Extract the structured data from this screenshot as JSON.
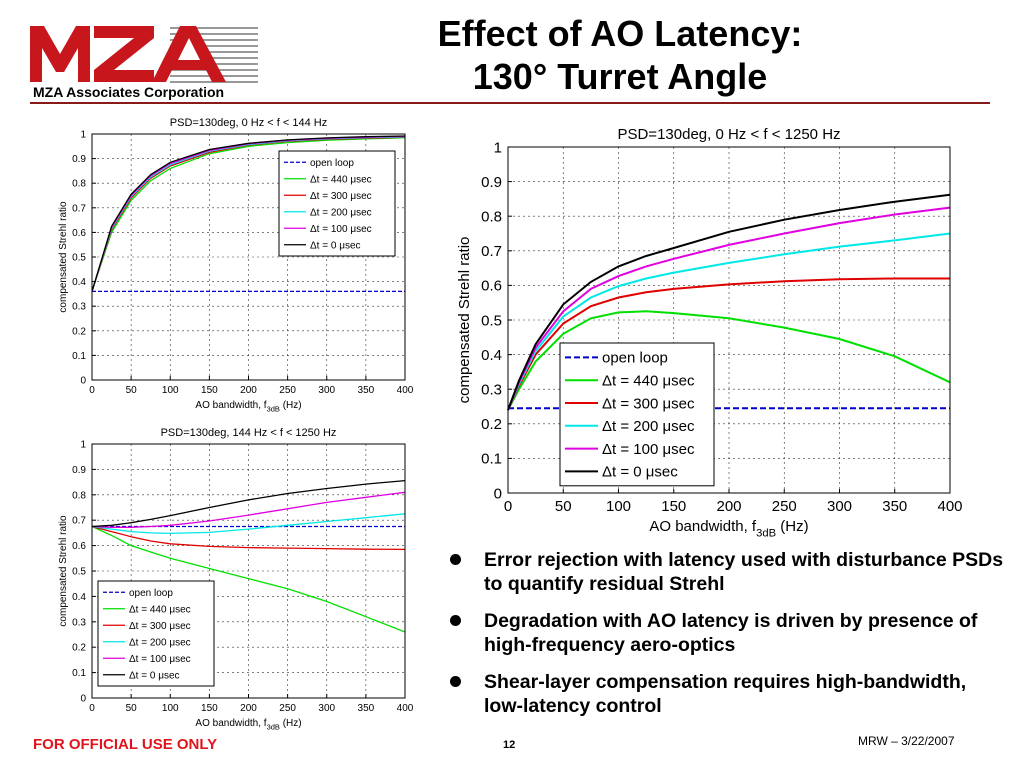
{
  "header": {
    "company": "MZA Associates Corporation",
    "title_line1": "Effect of AO Latency:",
    "title_line2": "130° Turret Angle"
  },
  "colors": {
    "open_loop": "#0000cc",
    "dt440": "#00e000",
    "dt300": "#e00000",
    "dt200": "#00e8e8",
    "dt100": "#e000e0",
    "dt0": "#000000",
    "logo_red": "#c8161d",
    "footer_red": "#e1141e"
  },
  "bullets": [
    "Error rejection with latency used with disturbance PSDs to quantify residual Strehl",
    "Degradation with AO latency is driven by presence of high-frequency aero-optics",
    "Shear-layer compensation requires high-bandwidth, low-latency control"
  ],
  "footer": {
    "classification": "FOR OFFICIAL USE ONLY",
    "page": "12",
    "author_date": "MRW – 3/22/2007"
  },
  "chart_data": [
    {
      "type": "line",
      "title": "PSD=130deg, 0 Hz < f < 144 Hz",
      "xlabel": "AO bandwidth, f",
      "xlabel_sub": "3dB",
      "xlabel_unit": " (Hz)",
      "ylabel": "compensated Strehl ratio",
      "xlim": [
        0,
        400
      ],
      "ylim": [
        0,
        1
      ],
      "xticks": [
        0,
        50,
        100,
        150,
        200,
        250,
        300,
        350,
        400
      ],
      "yticks": [
        0,
        0.1,
        0.2,
        0.3,
        0.4,
        0.5,
        0.6,
        0.7,
        0.8,
        0.9,
        1
      ],
      "ytick_labels": [
        "0",
        "0.1",
        "0.2",
        "0.3",
        "0.4",
        "0.5",
        "0.6",
        "0.7",
        "0.8",
        "0.9",
        "1"
      ],
      "grid": true,
      "legend_position": "upper-right",
      "x": [
        0,
        25,
        50,
        75,
        100,
        150,
        200,
        250,
        300,
        350,
        400
      ],
      "series": [
        {
          "name": "open loop",
          "key": "open_loop",
          "dashed": true,
          "values": [
            0.36,
            0.36,
            0.36,
            0.36,
            0.36,
            0.36,
            0.36,
            0.36,
            0.36,
            0.36,
            0.36
          ]
        },
        {
          "name": "Δt = 440 μsec",
          "key": "dt440",
          "values": [
            0.36,
            0.6,
            0.73,
            0.81,
            0.86,
            0.92,
            0.95,
            0.965,
            0.975,
            0.98,
            0.985
          ]
        },
        {
          "name": "Δt = 300 μsec",
          "key": "dt300",
          "values": [
            0.36,
            0.61,
            0.74,
            0.82,
            0.87,
            0.925,
            0.955,
            0.97,
            0.978,
            0.983,
            0.987
          ]
        },
        {
          "name": "Δt = 200 μsec",
          "key": "dt200",
          "values": [
            0.36,
            0.615,
            0.745,
            0.825,
            0.875,
            0.93,
            0.957,
            0.972,
            0.98,
            0.985,
            0.988
          ]
        },
        {
          "name": "Δt = 100 μsec",
          "key": "dt100",
          "values": [
            0.36,
            0.62,
            0.75,
            0.83,
            0.88,
            0.933,
            0.96,
            0.974,
            0.982,
            0.987,
            0.99
          ]
        },
        {
          "name": "Δt = 0 μsec",
          "key": "dt0",
          "values": [
            0.36,
            0.625,
            0.755,
            0.835,
            0.885,
            0.937,
            0.962,
            0.976,
            0.984,
            0.989,
            0.992
          ]
        }
      ]
    },
    {
      "type": "line",
      "title": "PSD=130deg, 144 Hz < f < 1250 Hz",
      "xlabel": "AO bandwidth, f",
      "xlabel_sub": "3dB",
      "xlabel_unit": " (Hz)",
      "ylabel": "compensated Strehl ratio",
      "xlim": [
        0,
        400
      ],
      "ylim": [
        0,
        1
      ],
      "xticks": [
        0,
        50,
        100,
        150,
        200,
        250,
        300,
        350,
        400
      ],
      "yticks": [
        0,
        0.1,
        0.2,
        0.3,
        0.4,
        0.5,
        0.6,
        0.7,
        0.8,
        0.9,
        1
      ],
      "ytick_labels": [
        "0",
        "0.1",
        "0.2",
        "0.3",
        "0.4",
        "0.5",
        "0.6",
        "0.7",
        "0.8",
        "0.9",
        "1"
      ],
      "grid": true,
      "legend_position": "lower-left",
      "x": [
        0,
        25,
        50,
        75,
        100,
        150,
        200,
        250,
        300,
        350,
        400
      ],
      "series": [
        {
          "name": "open loop",
          "key": "open_loop",
          "dashed": true,
          "values": [
            0.675,
            0.675,
            0.675,
            0.675,
            0.675,
            0.675,
            0.675,
            0.675,
            0.675,
            0.675,
            0.675
          ]
        },
        {
          "name": "Δt = 440 μsec",
          "key": "dt440",
          "values": [
            0.675,
            0.64,
            0.6,
            0.575,
            0.55,
            0.51,
            0.47,
            0.43,
            0.38,
            0.32,
            0.26
          ]
        },
        {
          "name": "Δt = 300 μsec",
          "key": "dt300",
          "values": [
            0.675,
            0.655,
            0.635,
            0.618,
            0.607,
            0.597,
            0.592,
            0.59,
            0.588,
            0.586,
            0.585
          ]
        },
        {
          "name": "Δt = 200 μsec",
          "key": "dt200",
          "values": [
            0.675,
            0.665,
            0.655,
            0.65,
            0.648,
            0.652,
            0.665,
            0.68,
            0.695,
            0.71,
            0.725
          ]
        },
        {
          "name": "Δt = 100 μsec",
          "key": "dt100",
          "values": [
            0.675,
            0.672,
            0.672,
            0.675,
            0.68,
            0.697,
            0.72,
            0.745,
            0.77,
            0.79,
            0.81
          ]
        },
        {
          "name": "Δt = 0 μsec",
          "key": "dt0",
          "values": [
            0.675,
            0.68,
            0.69,
            0.703,
            0.718,
            0.75,
            0.78,
            0.805,
            0.825,
            0.842,
            0.856
          ]
        }
      ]
    },
    {
      "type": "line",
      "title": "PSD=130deg, 0 Hz < f < 1250 Hz",
      "xlabel": "AO bandwidth, f",
      "xlabel_sub": "3dB",
      "xlabel_unit": " (Hz)",
      "ylabel": "compensated Strehl ratio",
      "xlim": [
        0,
        400
      ],
      "ylim": [
        0,
        1
      ],
      "xticks": [
        0,
        50,
        100,
        150,
        200,
        250,
        300,
        350,
        400
      ],
      "yticks": [
        0,
        0.1,
        0.2,
        0.3,
        0.4,
        0.5,
        0.6,
        0.7,
        0.8,
        0.9,
        1
      ],
      "ytick_labels": [
        "0",
        "0.1",
        "0.2",
        "0.3",
        "0.4",
        "0.5",
        "0.6",
        "0.7",
        "0.8",
        "0.9",
        "1"
      ],
      "grid": true,
      "legend_position": "lower-left",
      "x": [
        0,
        10,
        25,
        50,
        75,
        100,
        125,
        150,
        200,
        250,
        300,
        350,
        400
      ],
      "series": [
        {
          "name": "open loop",
          "key": "open_loop",
          "dashed": true,
          "values": [
            0.245,
            0.245,
            0.245,
            0.245,
            0.245,
            0.245,
            0.245,
            0.245,
            0.245,
            0.245,
            0.245,
            0.245,
            0.245
          ]
        },
        {
          "name": "Δt = 440 μsec",
          "key": "dt440",
          "values": [
            0.24,
            0.3,
            0.38,
            0.46,
            0.505,
            0.522,
            0.525,
            0.52,
            0.505,
            0.478,
            0.445,
            0.395,
            0.32
          ]
        },
        {
          "name": "Δt = 300 μsec",
          "key": "dt300",
          "values": [
            0.24,
            0.31,
            0.4,
            0.49,
            0.54,
            0.565,
            0.58,
            0.59,
            0.603,
            0.612,
            0.618,
            0.62,
            0.62
          ]
        },
        {
          "name": "Δt = 200 μsec",
          "key": "dt200",
          "values": [
            0.24,
            0.315,
            0.41,
            0.51,
            0.565,
            0.598,
            0.62,
            0.637,
            0.665,
            0.69,
            0.712,
            0.73,
            0.75
          ]
        },
        {
          "name": "Δt = 100 μsec",
          "key": "dt100",
          "values": [
            0.24,
            0.32,
            0.42,
            0.525,
            0.59,
            0.627,
            0.655,
            0.677,
            0.717,
            0.75,
            0.78,
            0.805,
            0.825
          ]
        },
        {
          "name": "Δt = 0 μsec",
          "key": "dt0",
          "values": [
            0.24,
            0.325,
            0.43,
            0.545,
            0.61,
            0.655,
            0.685,
            0.708,
            0.755,
            0.79,
            0.818,
            0.842,
            0.862
          ]
        }
      ]
    }
  ]
}
